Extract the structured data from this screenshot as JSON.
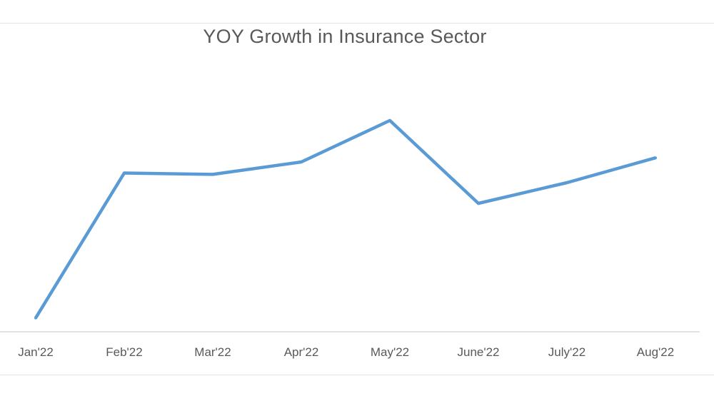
{
  "chart_data": {
    "type": "line",
    "title": "YOY Growth in Insurance Sector",
    "categories": [
      "Jan'22",
      "Feb'22",
      "Mar'22",
      "Apr'22",
      "May'22",
      "June'22",
      "July'22",
      "Aug'22"
    ],
    "series": [
      {
        "values": [
          5,
          57.5,
          57,
          61.5,
          76.5,
          46.5,
          54,
          63
        ],
        "color": "#5b9bd5"
      }
    ],
    "ylim": [
      0,
      100
    ],
    "grid": false,
    "legend": "none"
  }
}
